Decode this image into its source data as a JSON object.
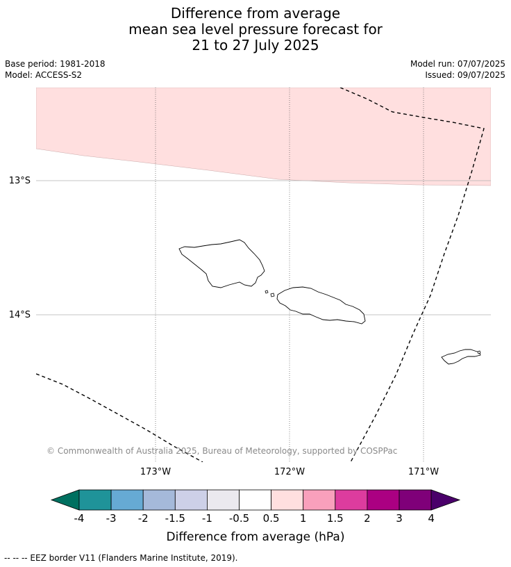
{
  "title": {
    "line1": "Difference from average",
    "line2": "mean sea level pressure forecast for",
    "line3": "21 to 27 July 2025"
  },
  "info": {
    "base_period": "Base period: 1981-2018",
    "model": "Model: ACCESS-S2",
    "model_run": "Model run: 07/07/2025",
    "issued": "Issued: 09/07/2025"
  },
  "map": {
    "lat_labels": [
      "13°S",
      "14°S"
    ],
    "lon_labels": [
      "173°W",
      "172°W",
      "171°W"
    ],
    "anomaly_fill_color": "#ffdfdf",
    "copyright": "© Commonwealth of Australia 2025, Bureau of Meteorology, supported by COSPPac"
  },
  "legend": {
    "title": "Difference from average (hPa)",
    "tick_labels": [
      "-4",
      "-3",
      "-2",
      "-1.5",
      "-1",
      "-0.5",
      "0.5",
      "1",
      "1.5",
      "2",
      "3",
      "4"
    ],
    "colors": [
      "#007060",
      "#1f9399",
      "#66aad4",
      "#a5b9da",
      "#cdd0e8",
      "#ebe9ef",
      "#ffffff",
      "#ffdfdf",
      "#f9a0bc",
      "#dd3c9e",
      "#ab0082",
      "#7f0079",
      "#4a006a"
    ]
  },
  "footer": {
    "eez_text": "--  --  -- EEZ border V11 (Flanders Marine Institute, 2019)."
  }
}
